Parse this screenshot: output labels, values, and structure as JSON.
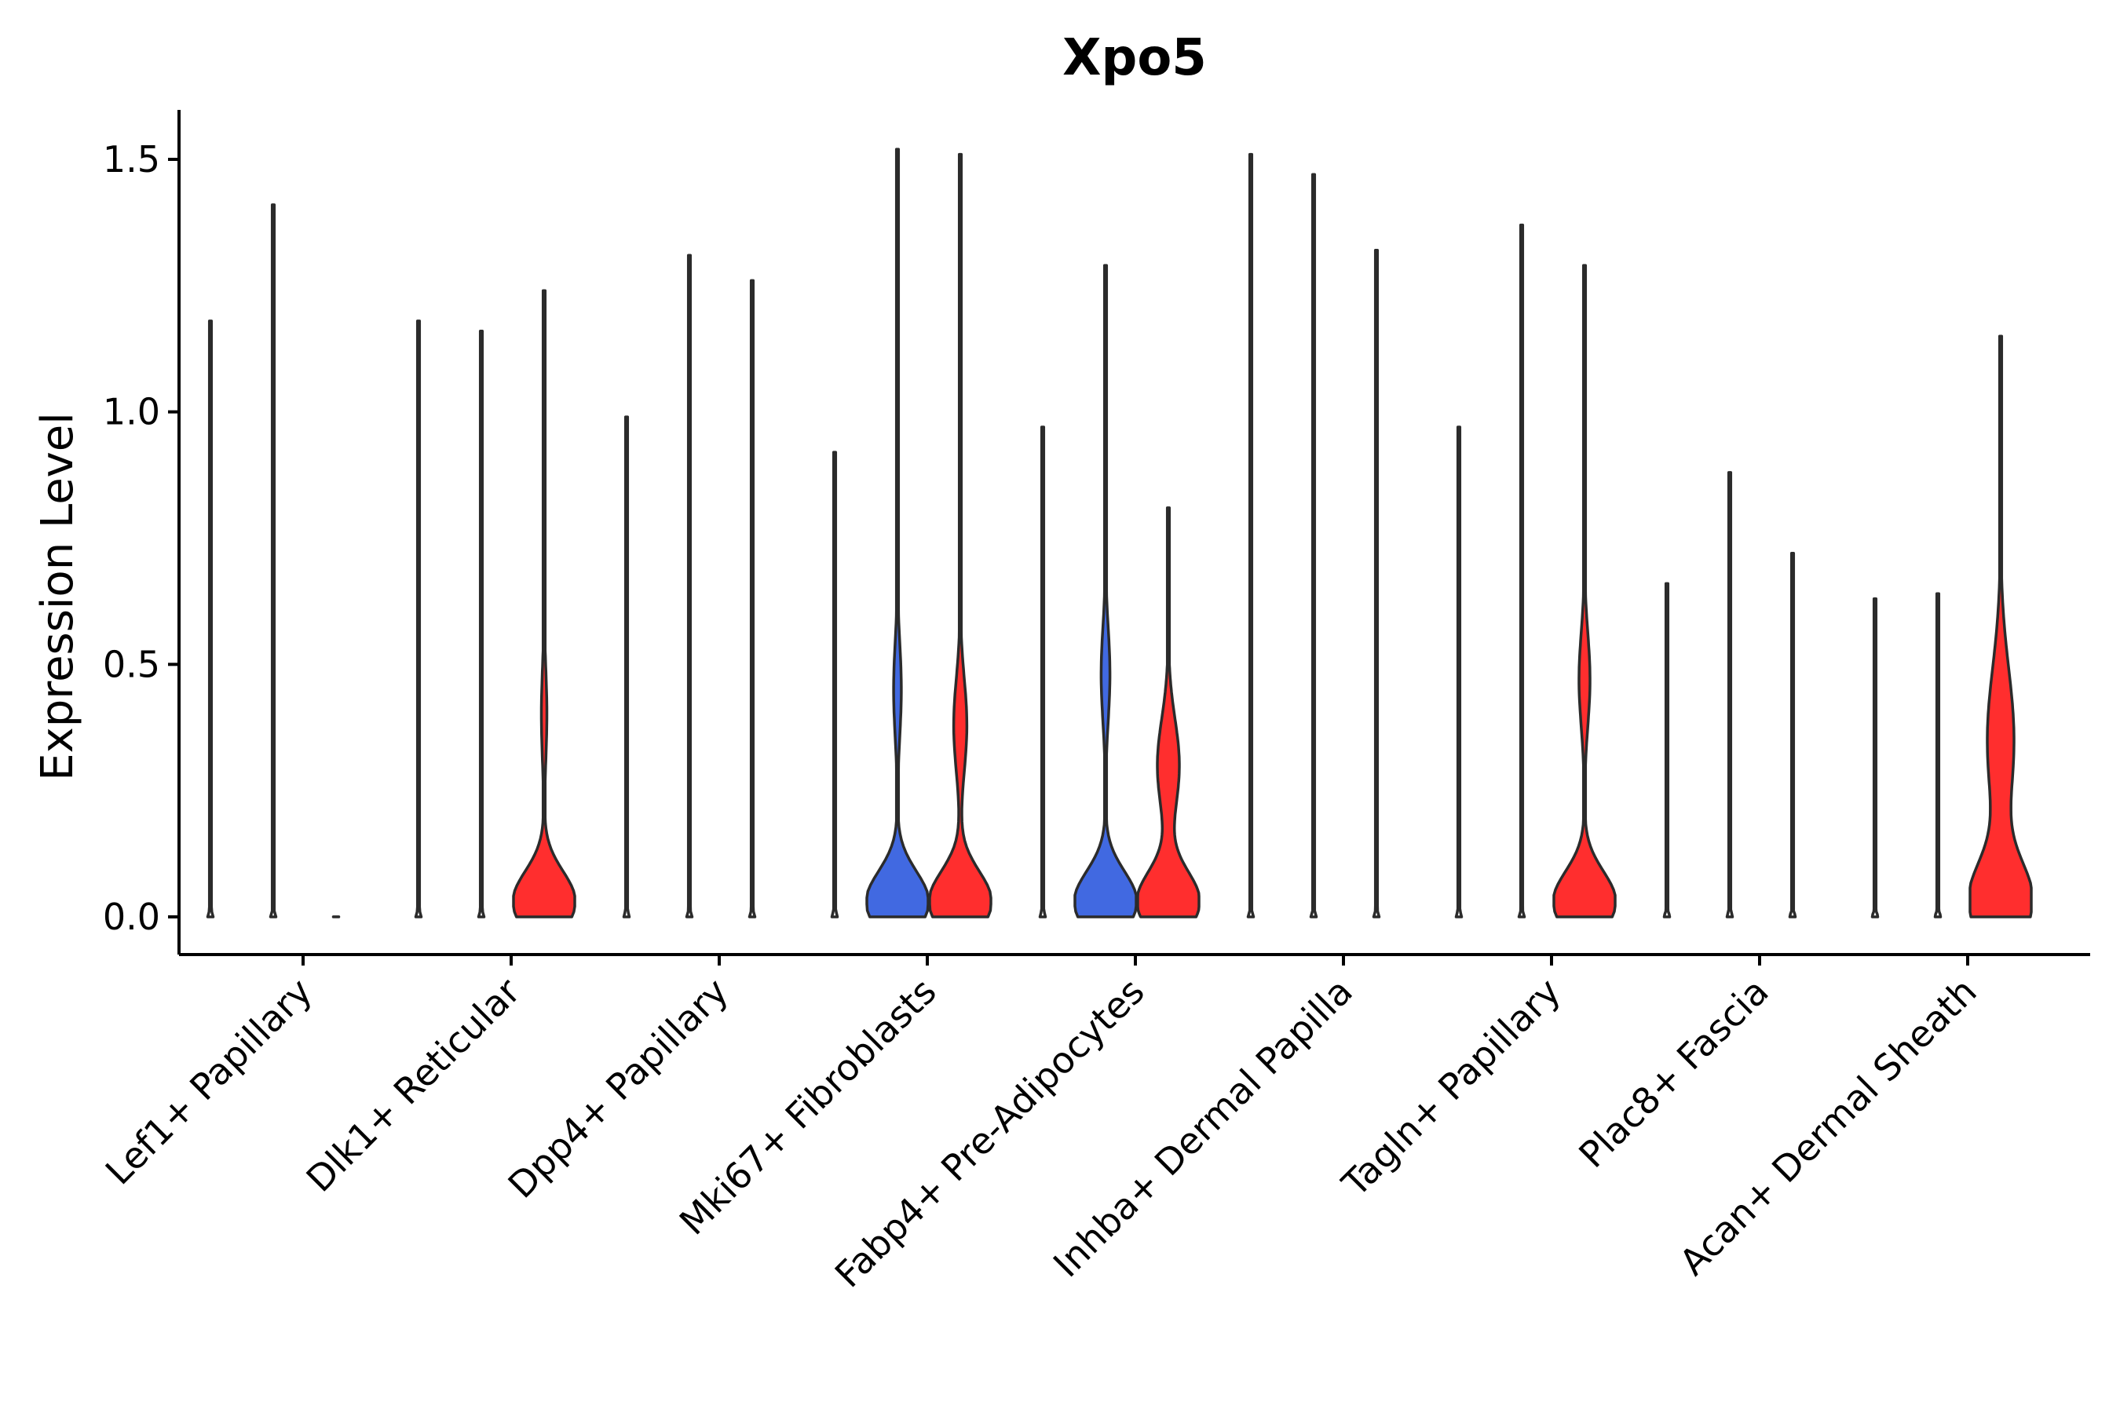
{
  "chart_data": {
    "type": "violin",
    "title": "Xpo5",
    "xlabel": "",
    "ylabel": "Expression Level",
    "ylim": [
      -0.08,
      1.6
    ],
    "yticks": [
      "0.0",
      "0.5",
      "1.0",
      "1.5"
    ],
    "ytick_values": [
      0.0,
      0.5,
      1.0,
      1.5
    ],
    "grid": false,
    "legend": "none",
    "colors": {
      "blue": "#4169E1",
      "red": "#FF2E2E",
      "flat": "#ffffff"
    },
    "categories": [
      "Lef1+ Papillary",
      "Dlk1+ Reticular",
      "Dpp4+ Papillary",
      "Mki67+ Fibroblasts",
      "Fabp4+ Pre-Adipocytes",
      "Inhba+ Dermal Papilla",
      "Tagln+ Papillary",
      "Plac8+ Fascia",
      "Acan+ Dermal Sheath"
    ],
    "groups": [
      {
        "category": "Lef1+ Papillary",
        "violins": [
          {
            "max": 1.18,
            "color": "flat",
            "shape": "flat"
          },
          {
            "max": 1.41,
            "color": "flat",
            "shape": "flat"
          },
          {
            "max": 0.0,
            "color": "flat",
            "shape": "flat"
          }
        ]
      },
      {
        "category": "Dlk1+ Reticular",
        "violins": [
          {
            "max": 1.18,
            "color": "flat",
            "shape": "flat"
          },
          {
            "max": 1.16,
            "color": "flat",
            "shape": "flat"
          },
          {
            "max": 1.24,
            "color": "red",
            "shape": "bimodal",
            "upper_mode": 0.4,
            "upper_width": 0.1
          }
        ]
      },
      {
        "category": "Dpp4+ Papillary",
        "violins": [
          {
            "max": 0.99,
            "color": "flat",
            "shape": "flat"
          },
          {
            "max": 1.31,
            "color": "flat",
            "shape": "flat"
          },
          {
            "max": 1.26,
            "color": "flat",
            "shape": "flat"
          }
        ]
      },
      {
        "category": "Mki67+ Fibroblasts",
        "violins": [
          {
            "max": 0.92,
            "color": "flat",
            "shape": "flat"
          },
          {
            "max": 1.52,
            "color": "blue",
            "shape": "bimodal",
            "upper_mode": 0.45,
            "upper_width": 0.14
          },
          {
            "max": 1.51,
            "color": "red",
            "shape": "bimodal",
            "upper_mode": 0.38,
            "upper_width": 0.24
          }
        ]
      },
      {
        "category": "Fabp4+ Pre-Adipocytes",
        "violins": [
          {
            "max": 0.97,
            "color": "flat",
            "shape": "flat"
          },
          {
            "max": 1.29,
            "color": "blue",
            "shape": "bimodal",
            "upper_mode": 0.48,
            "upper_width": 0.16
          },
          {
            "max": 0.81,
            "color": "red",
            "shape": "bimodal",
            "upper_mode": 0.3,
            "upper_width": 0.4
          }
        ]
      },
      {
        "category": "Inhba+ Dermal Papilla",
        "violins": [
          {
            "max": 1.51,
            "color": "flat",
            "shape": "flat"
          },
          {
            "max": 1.47,
            "color": "flat",
            "shape": "flat"
          },
          {
            "max": 1.32,
            "color": "flat",
            "shape": "flat"
          }
        ]
      },
      {
        "category": "Tagln+ Papillary",
        "violins": [
          {
            "max": 0.97,
            "color": "flat",
            "shape": "flat"
          },
          {
            "max": 1.37,
            "color": "flat",
            "shape": "flat"
          },
          {
            "max": 1.29,
            "color": "red",
            "shape": "bimodal",
            "upper_mode": 0.47,
            "upper_width": 0.2
          }
        ]
      },
      {
        "category": "Plac8+ Fascia",
        "violins": [
          {
            "max": 0.66,
            "color": "flat",
            "shape": "flat"
          },
          {
            "max": 0.88,
            "color": "flat",
            "shape": "flat"
          },
          {
            "max": 0.72,
            "color": "flat",
            "shape": "flat"
          }
        ]
      },
      {
        "category": "Acan+ Dermal Sheath",
        "violins": [
          {
            "max": 0.63,
            "color": "flat",
            "shape": "flat"
          },
          {
            "max": 0.64,
            "color": "flat",
            "shape": "flat"
          },
          {
            "max": 1.15,
            "color": "red",
            "shape": "broad",
            "upper_mode": 0.35,
            "upper_width": 0.3
          }
        ]
      }
    ]
  }
}
